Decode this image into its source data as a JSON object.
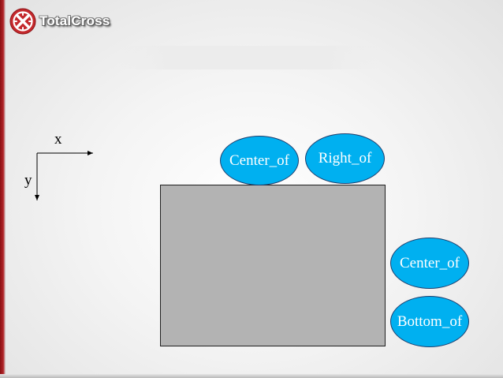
{
  "header": {
    "logo_text": "TotalCross",
    "logo_icon": "totalcross-logo-icon",
    "colors": {
      "logo_red": "#b3262a"
    }
  },
  "axes": {
    "x_label": "x",
    "y_label": "y"
  },
  "diagram": {
    "rect_color": "#b3b3b3",
    "ellipse_color": "#00b0f0",
    "ellipses": [
      {
        "label": "Center_of"
      },
      {
        "label": "Right_of"
      },
      {
        "label": "Center_of"
      },
      {
        "label": "Bottom_of"
      }
    ]
  }
}
